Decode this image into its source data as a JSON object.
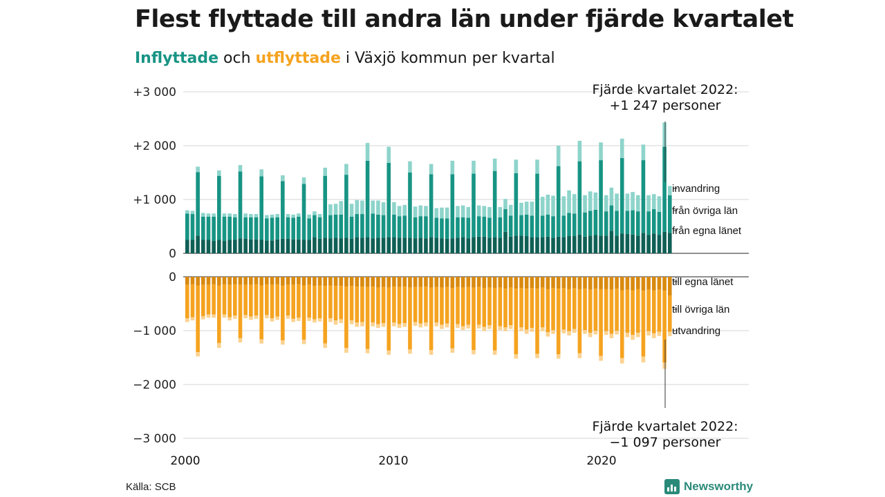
{
  "title": "Flest flyttade till andra län under fjärde kvartalet",
  "subtitle": {
    "in_word": "Inflyttade",
    "and_word": "och",
    "out_word": "utflyttade",
    "rest": "i Växjö kommun per kvartal"
  },
  "source": "Källa: SCB",
  "brand": "Newsworthy",
  "colors": {
    "in_own": "#0f5f55",
    "in_other": "#179484",
    "in_immig": "#8ed4cb",
    "out_own": "#d98a10",
    "out_other": "#f5a320",
    "out_emig": "#fbd28f"
  },
  "chart_data": {
    "type": "bar",
    "stacked": true,
    "x_start_year": 2000,
    "x_end_year": 2022,
    "periods_per_year": 4,
    "xticks": [
      "2000",
      "2010",
      "2020"
    ],
    "yticks_top": [
      "+3 000",
      "+2 000",
      "+1 000",
      "0"
    ],
    "yticks_bottom": [
      "0",
      "−1 000",
      "−2 000",
      "−3 000"
    ],
    "ylim_top": [
      0,
      3000
    ],
    "ylim_bottom": [
      -3000,
      0
    ],
    "grid": true,
    "legend_in": [
      "invandring",
      "från övriga län",
      "från egna länet"
    ],
    "legend_out": [
      "till egna länet",
      "till övriga län",
      "utvandring"
    ],
    "annotation_in": {
      "line1": "Fjärde kvartalet 2022:",
      "line2": "+1 247 personer"
    },
    "annotation_out": {
      "line1": "Fjärde kvartalet 2022:",
      "line2": "−1 097 personer"
    },
    "in_series": [
      {
        "name": "från egna länet",
        "values": [
          250,
          250,
          330,
          250,
          250,
          230,
          250,
          230,
          250,
          250,
          280,
          270,
          260,
          260,
          250,
          240,
          240,
          260,
          270,
          270,
          260,
          260,
          250,
          250,
          300,
          270,
          290,
          280,
          290,
          280,
          290,
          270,
          300,
          290,
          300,
          280,
          290,
          290,
          300,
          300,
          290,
          290,
          290,
          280,
          290,
          280,
          300,
          290,
          280,
          270,
          280,
          290,
          300,
          280,
          300,
          310,
          310,
          290,
          300,
          290,
          400,
          310,
          330,
          330,
          320,
          300,
          300,
          300,
          310,
          290,
          310,
          300,
          320,
          320,
          350,
          310,
          330,
          340,
          330,
          330,
          420,
          330,
          370,
          360,
          350,
          330,
          380,
          340,
          370,
          340,
          400,
          380
        ]
      },
      {
        "name": "från övriga län",
        "values": [
          490,
          480,
          1180,
          430,
          430,
          450,
          1190,
          450,
          430,
          420,
          1240,
          400,
          410,
          410,
          1180,
          410,
          420,
          410,
          1070,
          400,
          400,
          420,
          1040,
          400,
          410,
          400,
          1150,
          430,
          430,
          440,
          1170,
          410,
          430,
          440,
          1420,
          460,
          430,
          420,
          1380,
          420,
          400,
          410,
          1210,
          390,
          400,
          410,
          1170,
          370,
          370,
          380,
          1190,
          380,
          370,
          380,
          1180,
          380,
          370,
          370,
          1230,
          380,
          420,
          390,
          1160,
          380,
          400,
          400,
          1180,
          400,
          410,
          400,
          1310,
          400,
          430,
          420,
          1360,
          450,
          460,
          470,
          1400,
          450,
          470,
          460,
          1400,
          430,
          450,
          450,
          1350,
          440,
          450,
          430,
          1580,
          700
        ]
      },
      {
        "name": "invandring",
        "values": [
          60,
          60,
          100,
          70,
          60,
          60,
          100,
          60,
          60,
          60,
          120,
          70,
          60,
          60,
          130,
          60,
          60,
          60,
          110,
          60,
          60,
          60,
          120,
          70,
          70,
          60,
          150,
          200,
          200,
          250,
          200,
          240,
          260,
          250,
          330,
          240,
          260,
          240,
          300,
          230,
          190,
          200,
          210,
          200,
          200,
          190,
          190,
          180,
          200,
          200,
          250,
          210,
          220,
          200,
          240,
          200,
          200,
          200,
          230,
          190,
          190,
          200,
          250,
          230,
          240,
          260,
          260,
          350,
          370,
          380,
          380,
          360,
          420,
          360,
          380,
          320,
          360,
          320,
          330,
          300,
          330,
          320,
          360,
          320,
          340,
          300,
          290,
          300,
          280,
          290,
          450,
          170
        ]
      }
    ],
    "out_series": [
      {
        "name": "till egna länet",
        "values": [
          -150,
          -140,
          -160,
          -150,
          -150,
          -140,
          -160,
          -140,
          -150,
          -140,
          -150,
          -150,
          -150,
          -140,
          -160,
          -140,
          -150,
          -140,
          -160,
          -150,
          -150,
          -140,
          -160,
          -150,
          -170,
          -160,
          -170,
          -160,
          -170,
          -170,
          -180,
          -170,
          -180,
          -180,
          -190,
          -180,
          -200,
          -190,
          -200,
          -180,
          -190,
          -180,
          -200,
          -190,
          -190,
          -180,
          -200,
          -190,
          -200,
          -190,
          -210,
          -190,
          -200,
          -190,
          -200,
          -190,
          -210,
          -200,
          -210,
          -200,
          -220,
          -200,
          -220,
          -210,
          -220,
          -210,
          -220,
          -200,
          -230,
          -210,
          -220,
          -210,
          -230,
          -210,
          -230,
          -220,
          -240,
          -220,
          -230,
          -230,
          -240,
          -220,
          -250,
          -240,
          -250,
          -230,
          -260,
          -240,
          -250,
          -240,
          -260,
          -350
        ]
      },
      {
        "name": "till övriga län",
        "values": [
          -620,
          -610,
          -1240,
          -580,
          -550,
          -560,
          -1070,
          -560,
          -600,
          -580,
          -990,
          -560,
          -590,
          -580,
          -1000,
          -570,
          -620,
          -600,
          -1020,
          -570,
          -630,
          -620,
          -1010,
          -610,
          -620,
          -610,
          -1070,
          -610,
          -640,
          -620,
          -1140,
          -640,
          -670,
          -660,
          -1150,
          -670,
          -680,
          -670,
          -1170,
          -670,
          -690,
          -680,
          -1150,
          -650,
          -680,
          -670,
          -1160,
          -660,
          -690,
          -680,
          -1120,
          -690,
          -720,
          -700,
          -1160,
          -700,
          -720,
          -700,
          -1160,
          -720,
          -720,
          -700,
          -1220,
          -730,
          -760,
          -740,
          -1210,
          -740,
          -800,
          -780,
          -1220,
          -770,
          -780,
          -760,
          -1190,
          -770,
          -800,
          -780,
          -1240,
          -780,
          -820,
          -780,
          -1260,
          -800,
          -830,
          -810,
          -1220,
          -770,
          -800,
          -780,
          -1330,
          -670
        ]
      },
      {
        "name": "utvandring",
        "values": [
          -70,
          -60,
          -80,
          -60,
          -60,
          -60,
          -90,
          -60,
          -60,
          -60,
          -80,
          -60,
          -60,
          -60,
          -80,
          -60,
          -60,
          -60,
          -80,
          -60,
          -60,
          -60,
          -80,
          -60,
          -60,
          -60,
          -80,
          -70,
          -80,
          -70,
          -90,
          -70,
          -80,
          -80,
          -80,
          -70,
          -70,
          -70,
          -80,
          -70,
          -70,
          -70,
          -80,
          -70,
          -70,
          -70,
          -90,
          -70,
          -80,
          -70,
          -80,
          -70,
          -70,
          -70,
          -80,
          -70,
          -80,
          -70,
          -80,
          -70,
          -70,
          -70,
          -80,
          -70,
          -80,
          -70,
          -80,
          -70,
          -80,
          -70,
          -80,
          -70,
          -80,
          -70,
          -90,
          -70,
          -80,
          -70,
          -90,
          -70,
          -80,
          -70,
          -100,
          -80,
          -90,
          -80,
          -110,
          -80,
          -90,
          -80,
          -120,
          -80
        ]
      }
    ]
  }
}
